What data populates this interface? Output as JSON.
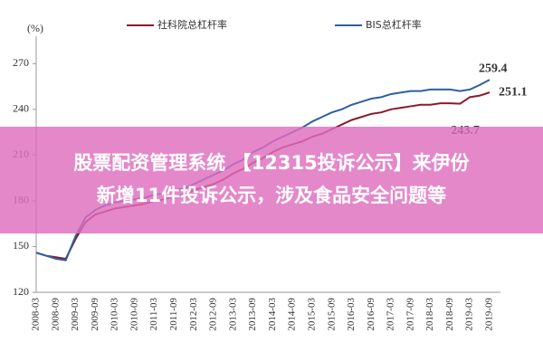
{
  "chart_data": {
    "type": "line",
    "y_unit": "(%)",
    "categories": [
      "2008-03",
      null,
      "2008-09",
      null,
      "2009-03",
      null,
      "2009-09",
      null,
      "2010-03",
      null,
      "2010-09",
      null,
      "2011-03",
      null,
      "2011-09",
      null,
      "2012-03",
      null,
      "2012-09",
      null,
      "2013-03",
      null,
      "2013-09",
      null,
      "2014-03",
      null,
      "2014-09",
      null,
      "2015-03",
      null,
      "2015-09",
      null,
      "2016-03",
      null,
      "2016-09",
      null,
      "2017-03",
      null,
      "2017-09",
      null,
      "2018-03",
      null,
      "2018-09",
      null,
      "2019-03",
      null,
      "2019-09"
    ],
    "series": [
      {
        "name": "社科院总杠杆率",
        "color": "#8b1a2b",
        "values": [
          146,
          144,
          143,
          142,
          155,
          166,
          171,
          173,
          175,
          176,
          177,
          178,
          180,
          181,
          183,
          184,
          187,
          189,
          191,
          194,
          198,
          201,
          205,
          208,
          212,
          215,
          217,
          219,
          222,
          224,
          227,
          230,
          233,
          235,
          237,
          238,
          240,
          241,
          242,
          243,
          243,
          244,
          244,
          243.7,
          248,
          249,
          251.1
        ]
      },
      {
        "name": "BIS总杠杆率",
        "color": "#2e5fa3",
        "values": [
          146,
          144,
          142,
          141,
          157,
          169,
          174,
          177,
          179,
          180,
          181,
          182,
          184,
          185,
          187,
          188,
          191,
          194,
          197,
          200,
          204,
          207,
          212,
          215,
          219,
          222,
          225,
          228,
          232,
          235,
          238,
          240,
          243,
          245,
          247,
          248,
          250,
          251,
          252,
          252,
          253,
          253,
          253,
          252,
          253,
          256,
          259.4
        ]
      }
    ],
    "ylim": [
      120,
      285
    ],
    "yticks": [
      120,
      150,
      180,
      210,
      240,
      270
    ]
  },
  "banner": {
    "lines": [
      "股票配资管理系统 【12315投诉公示】来伊份",
      "新增11件投诉公示，涉及食品安全问题等"
    ]
  }
}
